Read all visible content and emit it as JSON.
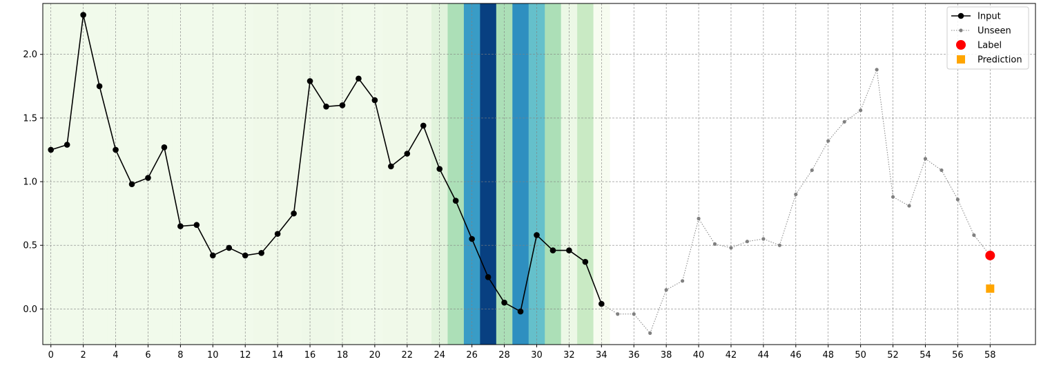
{
  "chart_data": {
    "type": "line",
    "title": "",
    "xlabel": "",
    "ylabel": "",
    "xlim": [
      -0.5,
      60.8
    ],
    "ylim": [
      -0.28,
      2.4
    ],
    "x_ticks": [
      0,
      2,
      4,
      6,
      8,
      10,
      12,
      14,
      16,
      18,
      20,
      22,
      24,
      26,
      28,
      30,
      32,
      34,
      36,
      38,
      40,
      42,
      44,
      46,
      48,
      50,
      52,
      54,
      56,
      58
    ],
    "y_ticks": [
      0.0,
      0.5,
      1.0,
      1.5,
      2.0
    ],
    "y_tick_labels": [
      "0.0",
      "0.5",
      "1.0",
      "1.5",
      "2.0"
    ],
    "grid": true,
    "legend_position": "top-right",
    "series": [
      {
        "name": "Input",
        "style": "solid line with circle markers",
        "color": "#000000",
        "x": [
          0,
          1,
          2,
          3,
          4,
          5,
          6,
          7,
          8,
          9,
          10,
          11,
          12,
          13,
          14,
          15,
          16,
          17,
          18,
          19,
          20,
          21,
          22,
          23,
          24,
          25,
          26,
          27,
          28,
          29,
          30,
          31,
          32,
          33,
          34
        ],
        "values": [
          1.25,
          1.29,
          2.31,
          1.75,
          1.25,
          0.98,
          1.03,
          1.27,
          0.65,
          0.66,
          0.42,
          0.48,
          0.42,
          0.44,
          0.59,
          0.75,
          1.79,
          1.59,
          1.6,
          1.81,
          1.64,
          1.12,
          1.22,
          1.44,
          1.1,
          0.85,
          0.55,
          0.25,
          0.05,
          -0.02,
          0.58,
          0.46,
          0.46,
          0.37,
          0.04
        ]
      },
      {
        "name": "Unseen",
        "style": "dotted line with small dot markers",
        "color": "#808080",
        "x": [
          34,
          35,
          36,
          37,
          38,
          39,
          40,
          41,
          42,
          43,
          44,
          45,
          46,
          47,
          48,
          49,
          50,
          51,
          52,
          53,
          54,
          55,
          56,
          57,
          58
        ],
        "values": [
          0.04,
          -0.04,
          -0.04,
          -0.19,
          0.15,
          0.22,
          0.71,
          0.51,
          0.48,
          0.53,
          0.55,
          0.5,
          0.9,
          1.09,
          1.32,
          1.47,
          1.56,
          1.88,
          0.88,
          0.81,
          1.18,
          1.09,
          0.86,
          0.58,
          0.42
        ]
      },
      {
        "name": "Label",
        "style": "red circle",
        "color": "#ff0000",
        "x": [
          58
        ],
        "values": [
          0.42
        ]
      },
      {
        "name": "Prediction",
        "style": "orange square",
        "color": "#ffa500",
        "x": [
          58
        ],
        "values": [
          0.16
        ]
      }
    ],
    "background_heatmap": {
      "colormap": "GnBu",
      "x": [
        0,
        1,
        2,
        3,
        4,
        5,
        6,
        7,
        8,
        9,
        10,
        11,
        12,
        13,
        14,
        15,
        16,
        17,
        18,
        19,
        20,
        21,
        22,
        23,
        24,
        25,
        26,
        27,
        28,
        29,
        30,
        31,
        32,
        33,
        34
      ],
      "intensity": [
        0.03,
        0.03,
        0.03,
        0.03,
        0.03,
        0.03,
        0.03,
        0.03,
        0.03,
        0.03,
        0.03,
        0.03,
        0.03,
        0.04,
        0.04,
        0.04,
        0.05,
        0.05,
        0.04,
        0.03,
        0.03,
        0.04,
        0.04,
        0.04,
        0.12,
        0.36,
        0.7,
        1.0,
        0.36,
        0.74,
        0.56,
        0.36,
        0.06,
        0.26,
        0.0
      ]
    }
  }
}
